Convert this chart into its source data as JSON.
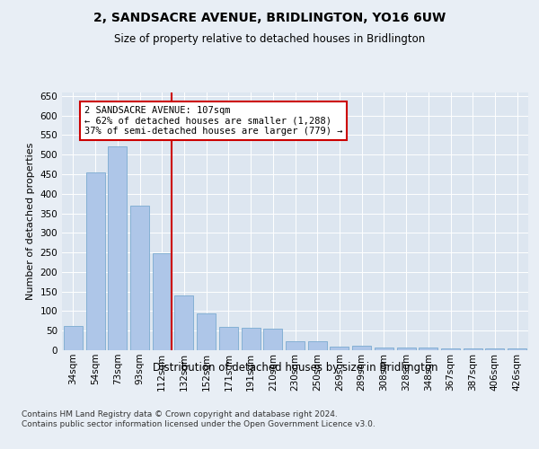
{
  "title": "2, SANDSACRE AVENUE, BRIDLINGTON, YO16 6UW",
  "subtitle": "Size of property relative to detached houses in Bridlington",
  "xlabel": "Distribution of detached houses by size in Bridlington",
  "ylabel": "Number of detached properties",
  "categories": [
    "34sqm",
    "54sqm",
    "73sqm",
    "93sqm",
    "112sqm",
    "132sqm",
    "152sqm",
    "171sqm",
    "191sqm",
    "210sqm",
    "230sqm",
    "250sqm",
    "269sqm",
    "289sqm",
    "308sqm",
    "328sqm",
    "348sqm",
    "367sqm",
    "387sqm",
    "406sqm",
    "426sqm"
  ],
  "values": [
    62,
    455,
    522,
    370,
    247,
    140,
    94,
    59,
    57,
    54,
    24,
    23,
    10,
    12,
    7,
    6,
    6,
    5,
    4,
    5,
    4
  ],
  "bar_color": "#aec6e8",
  "bar_edge_color": "#7aaad0",
  "vline_color": "#cc0000",
  "vline_x_index": 4.425,
  "annotation_text": "2 SANDSACRE AVENUE: 107sqm\n← 62% of detached houses are smaller (1,288)\n37% of semi-detached houses are larger (779) →",
  "annotation_box_color": "#ffffff",
  "annotation_box_edge_color": "#cc0000",
  "ylim": [
    0,
    660
  ],
  "yticks": [
    0,
    50,
    100,
    150,
    200,
    250,
    300,
    350,
    400,
    450,
    500,
    550,
    600,
    650
  ],
  "bg_color": "#e8eef5",
  "plot_bg_color": "#dde6f0",
  "footer": "Contains HM Land Registry data © Crown copyright and database right 2024.\nContains public sector information licensed under the Open Government Licence v3.0."
}
